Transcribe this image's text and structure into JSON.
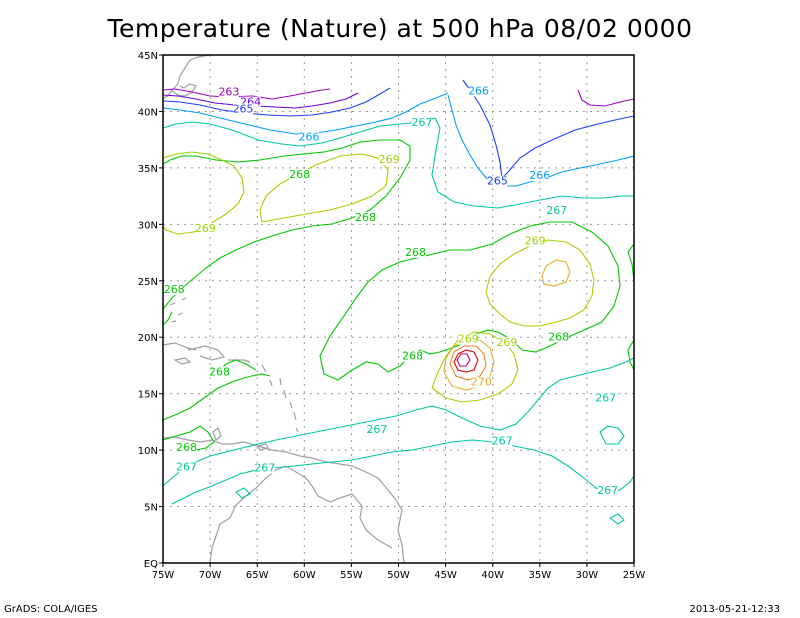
{
  "title": "Temperature (Nature) at 500 hPa 08/02 0000",
  "footer": {
    "left": "GrADS: COLA/IGES",
    "right": "2013-05-21-12:33"
  },
  "axes": {
    "x_ticks": [
      "75W",
      "70W",
      "65W",
      "60W",
      "55W",
      "50W",
      "45W",
      "40W",
      "35W",
      "30W",
      "25W"
    ],
    "y_ticks": [
      "EQ",
      "5N",
      "10N",
      "15N",
      "20N",
      "25N",
      "30N",
      "35N",
      "40N",
      "45N"
    ]
  },
  "colors": {
    "c263": "#a000c8",
    "c264": "#6e00dc",
    "c265": "#1e3cff",
    "c266": "#00a0ff",
    "c267": "#00c8a0",
    "c268": "#00c800",
    "c269": "#a0d200",
    "c270": "#e6af2d",
    "warm1": "#f08228",
    "warm2": "#e00000",
    "warm3": "#c80078",
    "land": "#a0a0a0"
  },
  "contour_labels": [
    {
      "text": "263",
      "lon": -68.0,
      "lat": 41.5,
      "color": "c263"
    },
    {
      "text": "264",
      "lon": -65.7,
      "lat": 40.6,
      "color": "c264"
    },
    {
      "text": "265",
      "lon": -66.5,
      "lat": 40.0,
      "color": "c265"
    },
    {
      "text": "266",
      "lon": -59.5,
      "lat": 37.5,
      "color": "c266"
    },
    {
      "text": "266",
      "lon": -41.5,
      "lat": 41.6,
      "color": "c266"
    },
    {
      "text": "267",
      "lon": -47.5,
      "lat": 38.8,
      "color": "c267"
    },
    {
      "text": "268",
      "lon": -60.5,
      "lat": 34.2,
      "color": "c268"
    },
    {
      "text": "269",
      "lon": -51.0,
      "lat": 35.5,
      "color": "c269"
    },
    {
      "text": "268",
      "lon": -53.5,
      "lat": 30.4,
      "color": "c268"
    },
    {
      "text": "269",
      "lon": -70.5,
      "lat": 29.4,
      "color": "c269"
    },
    {
      "text": "265",
      "lon": -39.5,
      "lat": 33.6,
      "color": "c265"
    },
    {
      "text": "266",
      "lon": -35.0,
      "lat": 34.1,
      "color": "c266"
    },
    {
      "text": "267",
      "lon": -33.2,
      "lat": 31.0,
      "color": "c267"
    },
    {
      "text": "268",
      "lon": -48.2,
      "lat": 27.3,
      "color": "c268"
    },
    {
      "text": "269",
      "lon": -35.5,
      "lat": 28.3,
      "color": "c269"
    },
    {
      "text": "268",
      "lon": -73.8,
      "lat": 24.0,
      "color": "c268"
    },
    {
      "text": "268",
      "lon": -33.0,
      "lat": 19.8,
      "color": "c268"
    },
    {
      "text": "269",
      "lon": -42.6,
      "lat": 19.6,
      "color": "c269"
    },
    {
      "text": "269",
      "lon": -38.5,
      "lat": 19.3,
      "color": "c269"
    },
    {
      "text": "268",
      "lon": -48.5,
      "lat": 18.1,
      "color": "c268"
    },
    {
      "text": "268",
      "lon": -69.0,
      "lat": 16.7,
      "color": "c268"
    },
    {
      "text": "270",
      "lon": -41.2,
      "lat": 15.8,
      "color": "c270"
    },
    {
      "text": "267",
      "lon": -28.0,
      "lat": 14.4,
      "color": "c267"
    },
    {
      "text": "267",
      "lon": -52.3,
      "lat": 11.6,
      "color": "c267"
    },
    {
      "text": "267",
      "lon": -39.0,
      "lat": 10.6,
      "color": "c267"
    },
    {
      "text": "268",
      "lon": -72.5,
      "lat": 10.0,
      "color": "c268"
    },
    {
      "text": "267",
      "lon": -72.5,
      "lat": 8.3,
      "color": "c267"
    },
    {
      "text": "267",
      "lon": -64.2,
      "lat": 8.2,
      "color": "c267"
    },
    {
      "text": "267",
      "lon": -27.8,
      "lat": 6.2,
      "color": "c267"
    }
  ]
}
